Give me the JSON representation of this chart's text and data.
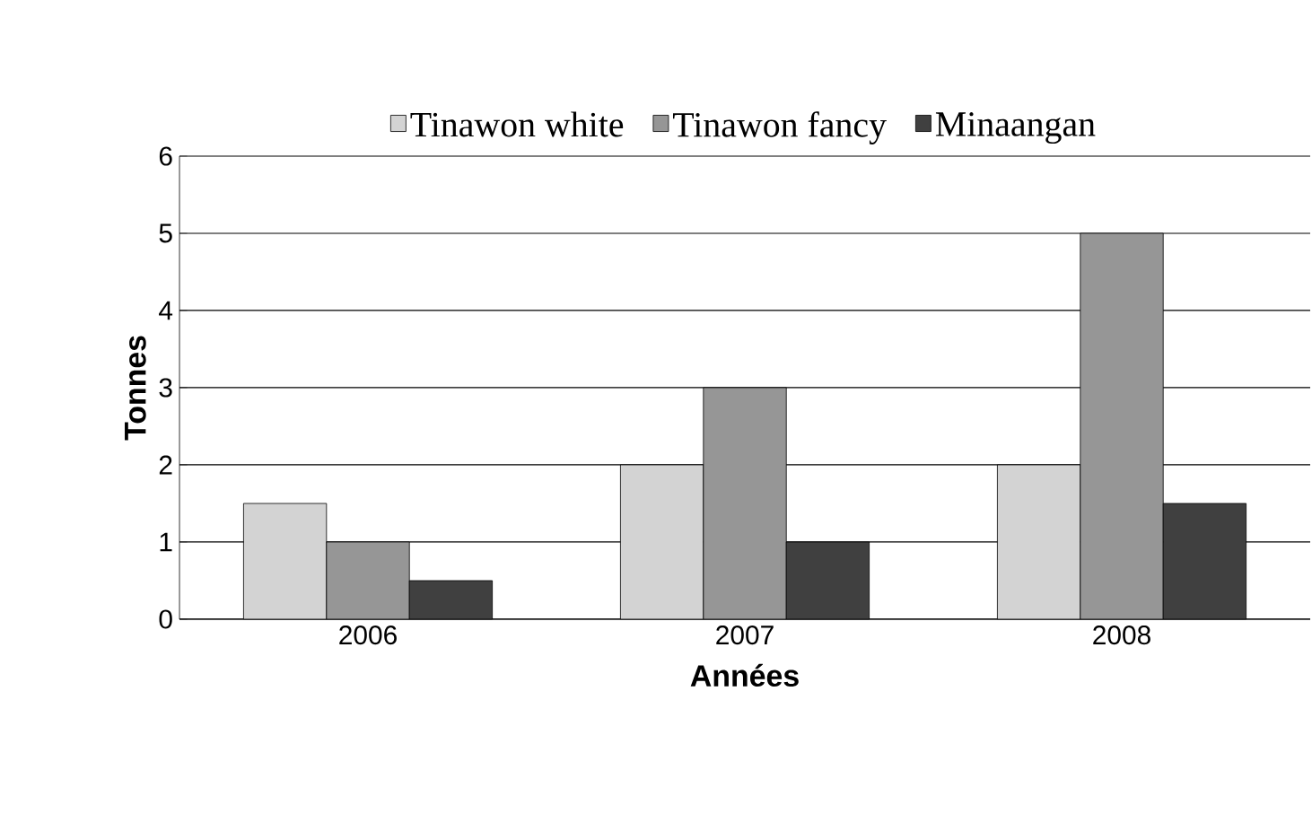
{
  "chart_data": {
    "type": "bar",
    "xlabel": "Années",
    "ylabel": "Tonnes",
    "categories": [
      "2006",
      "2007",
      "2008"
    ],
    "series": [
      {
        "name": "Tinawon white",
        "color": "#d3d3d3",
        "values": [
          1.5,
          2,
          2
        ]
      },
      {
        "name": "Tinawon fancy",
        "color": "#969696",
        "values": [
          1,
          3,
          5
        ]
      },
      {
        "name": "Minaangan",
        "color": "#404040",
        "values": [
          0.5,
          1,
          1.5
        ]
      }
    ],
    "ylim": [
      0,
      6
    ],
    "yticks": [
      0,
      1,
      2,
      3,
      4,
      5,
      6
    ],
    "grid": "y",
    "legend": "top"
  }
}
